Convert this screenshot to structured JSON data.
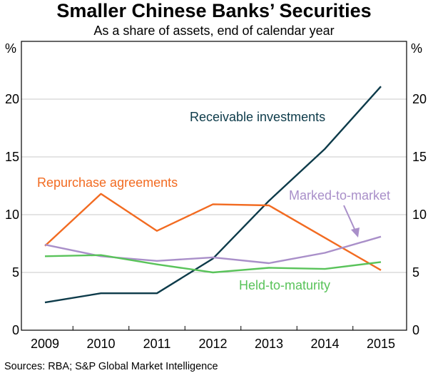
{
  "chart_data": {
    "type": "line",
    "title": "Smaller Chinese Banks’ Securities",
    "subtitle": "As a share of assets, end of calendar year",
    "y_unit_left": "%",
    "y_unit_right": "%",
    "ylim": [
      0,
      25
    ],
    "yticks": [
      0,
      5,
      10,
      15,
      20
    ],
    "categories": [
      "2009",
      "2010",
      "2011",
      "2012",
      "2013",
      "2014",
      "2015"
    ],
    "grid": true,
    "series": [
      {
        "name": "Receivable investments",
        "color": "#0d3b4a",
        "values": [
          2.4,
          3.2,
          3.2,
          6.2,
          11.2,
          15.7,
          21.1
        ]
      },
      {
        "name": "Repurchase agreements",
        "color": "#f26b21",
        "values": [
          7.3,
          11.8,
          8.6,
          10.9,
          10.8,
          8.0,
          5.2
        ]
      },
      {
        "name": "Marked-to-market",
        "color": "#a98fc9",
        "values": [
          7.4,
          6.4,
          6.0,
          6.3,
          5.8,
          6.7,
          8.1
        ]
      },
      {
        "name": "Held-to-maturity",
        "color": "#59c35a",
        "values": [
          6.4,
          6.5,
          5.7,
          5.0,
          5.4,
          5.3,
          5.9
        ]
      }
    ],
    "source": "Sources:   RBA; S&P Global Market Intelligence"
  }
}
